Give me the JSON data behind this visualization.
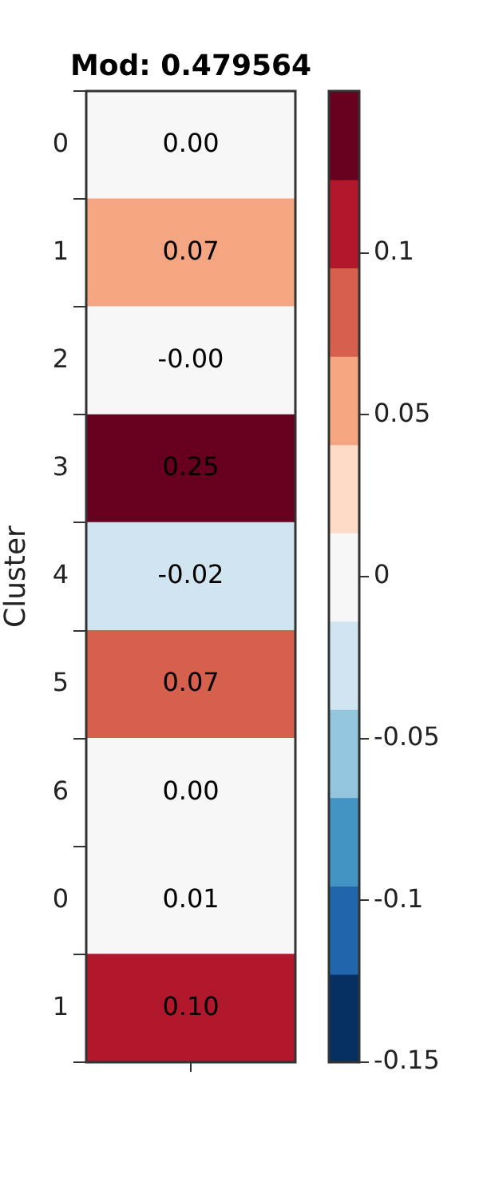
{
  "chart_data": {
    "type": "heatmap",
    "title": "Mod: 0.479564",
    "ylabel": "Cluster",
    "categories": [
      null
    ],
    "y_categories": [
      "0",
      "1",
      "2",
      "3",
      "4",
      "5",
      "6",
      "0",
      "1"
    ],
    "cells": [
      [
        0.0
      ],
      [
        0.067
      ],
      [
        -0.001
      ],
      [
        0.25
      ],
      [
        -0.02
      ],
      [
        0.074
      ],
      [
        0.0
      ],
      [
        0.01
      ],
      [
        0.1
      ]
    ],
    "cell_labels": [
      [
        "0.00"
      ],
      [
        "0.07"
      ],
      [
        "-0.00"
      ],
      [
        "0.25"
      ],
      [
        "-0.02"
      ],
      [
        "0.07"
      ],
      [
        "0.00"
      ],
      [
        "0.01"
      ],
      [
        "0.10"
      ]
    ],
    "clim": [
      -0.15,
      0.15
    ],
    "cticks": [
      -0.15,
      -0.1,
      -0.05,
      0,
      0.05,
      0.1
    ],
    "colors": [
      "#053061",
      "#2166ac",
      "#4393c3",
      "#92c5de",
      "#d1e5f0",
      "#f7f7f7",
      "#fddbc7",
      "#f4a582",
      "#d6604d",
      "#b2182b",
      "#67001f"
    ],
    "legend": false
  }
}
